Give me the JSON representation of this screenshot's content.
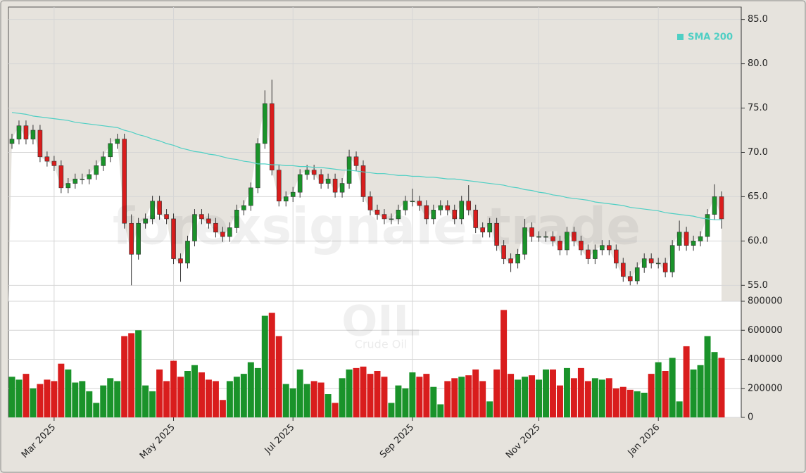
{
  "chart_data": {
    "type": "candlestick",
    "title": "OIL",
    "subtitle": "Crude Oil",
    "watermark": "forexsignale.trade",
    "categories": [
      null,
      null,
      null,
      null,
      null,
      null,
      "Mar 2025",
      null,
      null,
      null,
      null,
      null,
      null,
      null,
      null,
      null,
      null,
      null,
      null,
      null,
      null,
      null,
      null,
      "May 2025",
      null,
      null,
      null,
      null,
      null,
      null,
      null,
      null,
      null,
      null,
      null,
      null,
      null,
      null,
      null,
      null,
      "Jul 2025",
      null,
      null,
      null,
      null,
      null,
      null,
      null,
      null,
      null,
      null,
      null,
      null,
      null,
      null,
      null,
      null,
      "Sep 2025",
      null,
      null,
      null,
      null,
      null,
      null,
      null,
      null,
      null,
      null,
      null,
      null,
      null,
      null,
      null,
      null,
      null,
      "Nov 2025",
      null,
      null,
      null,
      null,
      null,
      null,
      null,
      null,
      null,
      null,
      null,
      null,
      null,
      null,
      null,
      null,
      "Jan 2026",
      null,
      null,
      null,
      null,
      null,
      null,
      null,
      null,
      null
    ],
    "open": [
      71,
      71.5,
      73,
      71.5,
      72.5,
      69.5,
      69,
      68.5,
      66,
      66.5,
      67,
      67,
      67.5,
      68.5,
      69.5,
      71,
      71.5,
      62,
      58.5,
      62,
      62.5,
      64.5,
      63,
      62.5,
      58,
      57.5,
      60,
      63,
      62.5,
      62,
      61,
      60.5,
      61.5,
      63.5,
      64,
      66,
      71,
      75.5,
      68,
      64.5,
      65,
      65.5,
      67.5,
      68,
      67.5,
      66.5,
      67,
      65.5,
      66.5,
      69.5,
      68.5,
      65,
      63.5,
      63,
      62.5,
      62.5,
      63.5,
      64.5,
      64.5,
      64,
      62.5,
      63.5,
      64,
      63.5,
      62.5,
      64.5,
      63.5,
      61.5,
      61,
      62,
      59.5,
      58,
      57.5,
      58.5,
      61.5,
      60.5,
      60.5,
      60.5,
      60,
      59,
      61,
      60,
      59,
      58,
      59,
      59.5,
      59,
      57.5,
      56,
      55.5,
      57,
      58,
      57.5,
      57.5,
      56.5,
      59.5,
      61,
      59.5,
      60,
      60.5,
      63,
      65
    ],
    "high": [
      72.1,
      73.6,
      73.6,
      73.1,
      73.1,
      70.1,
      69.6,
      69.1,
      67.1,
      67.6,
      67.6,
      68.1,
      69.1,
      70.1,
      71.6,
      72.1,
      72.1,
      63,
      62.6,
      63.1,
      65.1,
      65.1,
      63.6,
      63.1,
      58.6,
      60.6,
      63.6,
      63.6,
      63.1,
      62.6,
      61.6,
      62.1,
      64.1,
      64.6,
      66.6,
      71.6,
      77,
      78.2,
      68.6,
      65.6,
      66.1,
      68.1,
      68.6,
      68.6,
      68.1,
      67.6,
      67.6,
      67.1,
      70.3,
      70.1,
      69.1,
      65.6,
      64.1,
      63.6,
      63.1,
      64.1,
      65.1,
      65.9,
      65.1,
      64.6,
      64.1,
      64.6,
      64.6,
      64.1,
      65.1,
      66.3,
      64.1,
      62.1,
      62.6,
      62.6,
      60.1,
      58.6,
      59.1,
      62.5,
      62.1,
      61.1,
      61.1,
      61.1,
      60.6,
      61.6,
      61.6,
      60.6,
      59.6,
      59.6,
      60.1,
      60.1,
      59.6,
      58.1,
      56.6,
      57.6,
      58.6,
      58.6,
      58.1,
      58.1,
      60.1,
      62.3,
      61.6,
      60.6,
      61.1,
      63.6,
      66.4,
      65.6
    ],
    "low": [
      70.4,
      70.9,
      70.9,
      70.9,
      68.9,
      68.4,
      67.9,
      65.4,
      65.4,
      65.9,
      66.4,
      66.4,
      66.9,
      67.9,
      68.9,
      70.4,
      61.4,
      55,
      57.9,
      61.4,
      61.9,
      62.4,
      61.9,
      57.4,
      55.4,
      56.9,
      59.4,
      61.9,
      61.4,
      60.4,
      59.9,
      59.9,
      60.9,
      62.9,
      63.4,
      65.4,
      70.4,
      67.4,
      63.9,
      63.9,
      64.4,
      64.9,
      66.9,
      66.9,
      65.9,
      65.9,
      64.9,
      64.9,
      65.9,
      67.9,
      64.4,
      62.9,
      62.4,
      61.9,
      61.9,
      61.9,
      62.9,
      63.9,
      63.4,
      61.9,
      61.9,
      62.9,
      62.9,
      61.9,
      61.9,
      62.9,
      60.9,
      60.4,
      60.4,
      58.9,
      57.4,
      56.5,
      56.9,
      57.9,
      59.9,
      59.9,
      59.9,
      59.4,
      58.4,
      58.4,
      59.4,
      58.4,
      57.4,
      57.4,
      58.4,
      58.4,
      56.9,
      55.4,
      55,
      55.1,
      56.4,
      56.9,
      56.9,
      55.9,
      55.9,
      58.9,
      58.9,
      58.9,
      59.4,
      59.9,
      62.4,
      61.4
    ],
    "close": [
      71.5,
      73,
      71.5,
      72.5,
      69.5,
      69,
      68.5,
      66,
      66.5,
      67,
      67,
      67.5,
      68.5,
      69.5,
      71,
      71.5,
      62,
      58.5,
      62,
      62.5,
      64.5,
      63,
      62.5,
      58,
      57.5,
      60,
      63,
      62.5,
      62,
      61,
      60.5,
      61.5,
      63.5,
      64,
      66,
      71,
      75.5,
      68,
      64.5,
      65,
      65.5,
      67.5,
      68,
      67.5,
      66.5,
      67,
      65.5,
      66.5,
      69.5,
      68.5,
      65,
      63.5,
      63,
      62.5,
      62.5,
      63.5,
      64.5,
      64.5,
      64,
      62.5,
      63.5,
      64,
      63.5,
      62.5,
      64.5,
      63.5,
      61.5,
      61,
      62,
      59.5,
      58,
      57.5,
      58.5,
      61.5,
      60.5,
      60.5,
      60.5,
      60,
      59,
      61,
      60,
      59,
      58,
      59,
      59.5,
      59,
      57.5,
      56,
      55.5,
      57,
      58,
      57.5,
      57.5,
      56.5,
      59.5,
      61,
      59.5,
      60,
      60.5,
      63,
      65,
      62.5
    ],
    "up_color": "#1a932a",
    "down_color": "#d91d1d",
    "ylim": [
      53.2,
      86.4
    ],
    "yticks": [
      {
        "value": 55,
        "label": "55.0"
      },
      {
        "value": 60,
        "label": "60.0"
      },
      {
        "value": 65,
        "label": "65.0"
      },
      {
        "value": 70,
        "label": "70.0"
      },
      {
        "value": 75,
        "label": "75.0"
      },
      {
        "value": 80,
        "label": "80.0"
      },
      {
        "value": 85,
        "label": "85.0"
      }
    ],
    "grid": true,
    "sma": {
      "name": "SMA 200",
      "color": "#4fcfc4",
      "values": [
        74.5,
        74.4,
        74.3,
        74.1,
        74.0,
        73.9,
        73.8,
        73.7,
        73.6,
        73.4,
        73.3,
        73.2,
        73.1,
        73.0,
        72.9,
        72.8,
        72.5,
        72.3,
        72.0,
        71.8,
        71.5,
        71.3,
        71.0,
        70.8,
        70.5,
        70.3,
        70.1,
        70.0,
        69.8,
        69.7,
        69.5,
        69.3,
        69.2,
        69.0,
        68.9,
        68.7,
        68.7,
        68.6,
        68.6,
        68.5,
        68.5,
        68.4,
        68.4,
        68.3,
        68.3,
        68.2,
        68.1,
        68.0,
        68.0,
        67.9,
        67.8,
        67.7,
        67.6,
        67.6,
        67.5,
        67.4,
        67.4,
        67.3,
        67.3,
        67.2,
        67.2,
        67.1,
        67.0,
        67.0,
        66.9,
        66.8,
        66.7,
        66.6,
        66.5,
        66.4,
        66.3,
        66.1,
        66.0,
        65.8,
        65.7,
        65.5,
        65.4,
        65.2,
        65.1,
        64.9,
        64.8,
        64.7,
        64.6,
        64.4,
        64.3,
        64.2,
        64.1,
        64.0,
        63.8,
        63.7,
        63.6,
        63.5,
        63.4,
        63.2,
        63.1,
        63.0,
        62.9,
        62.8,
        62.6,
        62.5,
        62.4,
        62.4
      ]
    },
    "volume": {
      "values": [
        280000,
        260000,
        300000,
        200000,
        230000,
        260000,
        250000,
        370000,
        330000,
        240000,
        250000,
        180000,
        100000,
        220000,
        270000,
        250000,
        560000,
        580000,
        600000,
        220000,
        180000,
        330000,
        250000,
        390000,
        280000,
        320000,
        360000,
        310000,
        260000,
        250000,
        120000,
        250000,
        280000,
        300000,
        380000,
        340000,
        700000,
        720000,
        560000,
        230000,
        200000,
        330000,
        230000,
        250000,
        240000,
        160000,
        100000,
        270000,
        330000,
        340000,
        350000,
        300000,
        320000,
        280000,
        100000,
        220000,
        200000,
        310000,
        280000,
        300000,
        210000,
        90000,
        250000,
        270000,
        280000,
        290000,
        330000,
        250000,
        110000,
        330000,
        740000,
        300000,
        260000,
        280000,
        290000,
        260000,
        330000,
        330000,
        220000,
        340000,
        270000,
        340000,
        250000,
        270000,
        260000,
        270000,
        200000,
        210000,
        190000,
        180000,
        170000,
        300000,
        380000,
        320000,
        410000,
        110000,
        490000,
        330000,
        360000,
        560000,
        450000,
        410000
      ],
      "ylim": [
        0,
        800000
      ],
      "yticks": [
        0,
        200000,
        400000,
        600000,
        800000
      ]
    }
  }
}
